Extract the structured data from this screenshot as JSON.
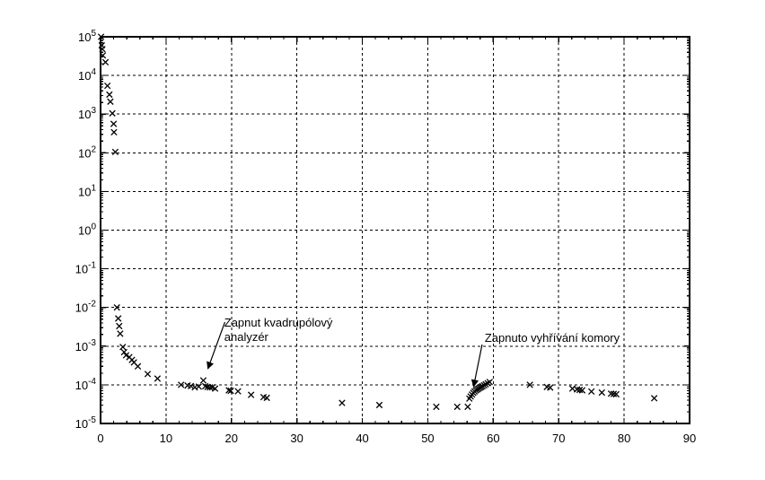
{
  "figure": {
    "background": "#ffffff",
    "frame_color": "#000000"
  },
  "chart_data": {
    "type": "scatter",
    "title": "",
    "xlabel": "",
    "ylabel": "",
    "grid": {
      "style": "dashed",
      "color": "#000000",
      "on": true
    },
    "x_axis": {
      "min": 0,
      "max": 90,
      "major_ticks": [
        0,
        10,
        20,
        30,
        40,
        50,
        60,
        70,
        80,
        90
      ],
      "minor_step": 2
    },
    "y_axis": {
      "scale": "log",
      "min_exp": -5,
      "max_exp": 5,
      "base": "10",
      "tick_exponents": [
        5,
        4,
        3,
        2,
        1,
        0,
        -1,
        -2,
        -3,
        -4,
        -5
      ]
    },
    "series": [
      {
        "marker": "x",
        "color": "#000000",
        "points": [
          [
            0.08,
            100000.0
          ],
          [
            0.18,
            60000.0
          ],
          [
            0.28,
            48000.0
          ],
          [
            0.35,
            33000.0
          ],
          [
            0.75,
            22000.0
          ],
          [
            1.05,
            5400.0
          ],
          [
            1.35,
            3200.0
          ],
          [
            1.5,
            2100.0
          ],
          [
            1.8,
            1050.0
          ],
          [
            2.0,
            560.0
          ],
          [
            2.05,
            340.0
          ],
          [
            2.25,
            105.0
          ],
          [
            2.5,
            0.01
          ],
          [
            2.7,
            0.0052
          ],
          [
            2.85,
            0.0033
          ],
          [
            3.0,
            0.0021
          ],
          [
            3.4,
            0.00095
          ],
          [
            3.6,
            0.0007
          ],
          [
            3.9,
            0.00058
          ],
          [
            4.4,
            0.00052
          ],
          [
            4.8,
            0.00044
          ],
          [
            5.1,
            0.00038
          ],
          [
            5.7,
            0.0003
          ],
          [
            7.2,
            0.00019
          ],
          [
            8.7,
            0.000145
          ],
          [
            12.3,
            0.0001
          ],
          [
            13.3,
            9.6e-05
          ],
          [
            13.8,
            9.3e-05
          ],
          [
            14.4,
            8.6e-05
          ],
          [
            15.0,
            9e-05
          ],
          [
            15.7,
            0.00013
          ],
          [
            16.0,
            9.2e-05
          ],
          [
            16.35,
            8.8e-05
          ],
          [
            16.7,
            8.6e-05
          ],
          [
            17.05,
            8.6e-05
          ],
          [
            17.5,
            8e-05
          ],
          [
            19.6,
            7.2e-05
          ],
          [
            19.9,
            7e-05
          ],
          [
            21.0,
            6.8e-05
          ],
          [
            23.0,
            5.5e-05
          ],
          [
            24.9,
            4.8e-05
          ],
          [
            25.4,
            4.6e-05
          ],
          [
            36.9,
            3.4e-05
          ],
          [
            42.6,
            3e-05
          ],
          [
            51.3,
            2.7e-05
          ],
          [
            54.5,
            2.7e-05
          ],
          [
            56.1,
            2.7e-05
          ],
          [
            56.35,
            4.4e-05
          ],
          [
            56.55,
            5e-05
          ],
          [
            56.75,
            5.6e-05
          ],
          [
            56.95,
            6.2e-05
          ],
          [
            57.15,
            6.7e-05
          ],
          [
            57.35,
            7.2e-05
          ],
          [
            57.55,
            7.6e-05
          ],
          [
            57.75,
            8e-05
          ],
          [
            57.95,
            8.4e-05
          ],
          [
            58.15,
            8.8e-05
          ],
          [
            58.35,
            9.2e-05
          ],
          [
            58.6,
            9.7e-05
          ],
          [
            58.85,
            0.000103
          ],
          [
            59.15,
            0.00011
          ],
          [
            59.45,
            0.000118
          ],
          [
            65.6,
            0.0001
          ],
          [
            68.2,
            8.8e-05
          ],
          [
            68.7,
            8.5e-05
          ],
          [
            72.1,
            8e-05
          ],
          [
            72.8,
            7.6e-05
          ],
          [
            73.2,
            7.4e-05
          ],
          [
            73.6,
            7.2e-05
          ],
          [
            75.0,
            6.7e-05
          ],
          [
            76.6,
            6.3e-05
          ],
          [
            78.0,
            5.9e-05
          ],
          [
            78.4,
            5.8e-05
          ],
          [
            78.8,
            5.7e-05
          ],
          [
            84.6,
            4.5e-05
          ]
        ]
      }
    ],
    "annotations": [
      {
        "lines": [
          "Zapnut kvadrupólový",
          "analyzér"
        ],
        "text_xy": [
          18.9,
          0.0032
        ],
        "arrow_from": [
          19.0,
          0.0042
        ],
        "arrow_to": [
          16.4,
          0.00026
        ]
      },
      {
        "lines": [
          "Zapnuto vyhřívání komory"
        ],
        "text_xy": [
          58.7,
          0.0013
        ],
        "arrow_from": [
          58.3,
          0.0011
        ],
        "arrow_to": [
          57.0,
          9e-05
        ]
      }
    ]
  }
}
